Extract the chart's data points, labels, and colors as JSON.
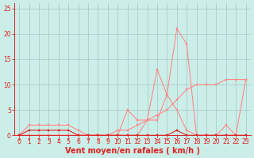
{
  "xlabel": "Vent moyen/en rafales ( km/h )",
  "bg_color": "#cceee8",
  "grid_color": "#aacccc",
  "line_color_dark": "#dd2222",
  "line_color_light": "#ff8888",
  "xlim": [
    -0.5,
    23.5
  ],
  "ylim": [
    0,
    26
  ],
  "xticks": [
    0,
    1,
    2,
    3,
    4,
    5,
    6,
    7,
    8,
    9,
    10,
    11,
    12,
    13,
    14,
    15,
    16,
    17,
    18,
    19,
    20,
    21,
    22,
    23
  ],
  "yticks": [
    0,
    5,
    10,
    15,
    20,
    25
  ],
  "series_dark_x": [
    0,
    1,
    2,
    3,
    4,
    5,
    6,
    7,
    8,
    9,
    10,
    11,
    12,
    13,
    14,
    15,
    16,
    17,
    18,
    19,
    20,
    21,
    22,
    23
  ],
  "series_dark_y": [
    0,
    1,
    1,
    1,
    1,
    1,
    0,
    0,
    0,
    0,
    0,
    0,
    0,
    0,
    0,
    0,
    1,
    0,
    0,
    0,
    0,
    0,
    0,
    0
  ],
  "series_light1_x": [
    0,
    1,
    2,
    3,
    4,
    5,
    6,
    7,
    8,
    9,
    10,
    11,
    12,
    13,
    14,
    15,
    16,
    17,
    18,
    19,
    20,
    21,
    22,
    23
  ],
  "series_light1_y": [
    0,
    2,
    2,
    2,
    2,
    2,
    1,
    0,
    0,
    0,
    0,
    0,
    0,
    3,
    3,
    8,
    5,
    1,
    0,
    0,
    0,
    0,
    0,
    0
  ],
  "series_light2_x": [
    0,
    1,
    2,
    3,
    4,
    5,
    6,
    7,
    8,
    9,
    10,
    11,
    12,
    13,
    14,
    15,
    16,
    17,
    18,
    19,
    20,
    21,
    22,
    23
  ],
  "series_light2_y": [
    0,
    0,
    0,
    0,
    0,
    0,
    0,
    0,
    0,
    0,
    0,
    5,
    3,
    3,
    13,
    8,
    21,
    18,
    0,
    0,
    0,
    2,
    0,
    11
  ],
  "series_light3_x": [
    0,
    1,
    2,
    3,
    4,
    5,
    6,
    7,
    8,
    9,
    10,
    11,
    12,
    13,
    14,
    15,
    16,
    17,
    18,
    19,
    20,
    21,
    22,
    23
  ],
  "series_light3_y": [
    0,
    0,
    0,
    0,
    0,
    0,
    0,
    0,
    0,
    0,
    1,
    1,
    2,
    3,
    4,
    5,
    7,
    9,
    10,
    10,
    10,
    11,
    11,
    11
  ],
  "marker_size": 2.0,
  "line_width": 0.8,
  "xlabel_fontsize": 7,
  "tick_fontsize": 5.5
}
